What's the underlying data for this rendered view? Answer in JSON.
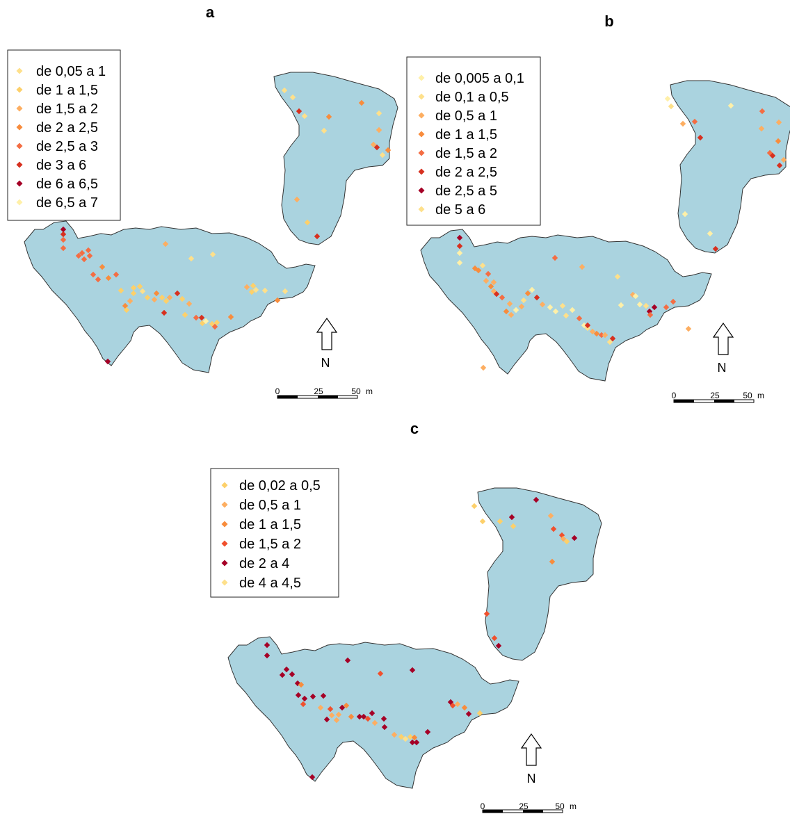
{
  "colors": {
    "area_fill": "#aad3df",
    "area_stroke": "#333333",
    "classes_a": [
      "#fee08b",
      "#fdd06a",
      "#fdae61",
      "#f88c3c",
      "#f46d43",
      "#d7301f",
      "#a50026",
      "#fff0a8"
    ],
    "classes_b": [
      "#fff0a8",
      "#fee08b",
      "#fdae61",
      "#f88c3c",
      "#f46d43",
      "#d7301f",
      "#a50026",
      "#fee08b"
    ],
    "classes_c": [
      "#fdd06a",
      "#fdae61",
      "#f88c3c",
      "#f0502d",
      "#a50026",
      "#fee08b"
    ]
  },
  "panels": [
    {
      "id": "a",
      "label": "a",
      "legend": [
        "de 0,05 a 1",
        "de 1 a 1,5",
        "de 1,5 a 2",
        "de 2 a 2,5",
        "de 2,5 a 3",
        "de 3 a 6",
        "de 6 a 6,5",
        "de 6,5 a 7"
      ],
      "north": "N",
      "scale": [
        "0",
        "25",
        "50",
        "m"
      ]
    },
    {
      "id": "b",
      "label": "b",
      "legend": [
        "de 0,005 a 0,1",
        "de 0,1 a 0,5",
        "de 0,5 a 1",
        "de 1 a 1,5",
        "de 1,5 a 2",
        "de 2 a 2,5",
        "de 2,5 a 5",
        "de 5 a 6"
      ],
      "north": "N",
      "scale": [
        "0",
        "25",
        "50",
        "m"
      ]
    },
    {
      "id": "c",
      "label": "c",
      "legend": [
        "de 0,02 a 0,5",
        "de 0,5 a 1",
        "de 1 a 1,5",
        "de 1,5 a 2",
        "de 2 a 4",
        "de 4 a 4,5"
      ],
      "north": "N",
      "scale": [
        "0",
        "25",
        "50",
        "m"
      ]
    }
  ]
}
